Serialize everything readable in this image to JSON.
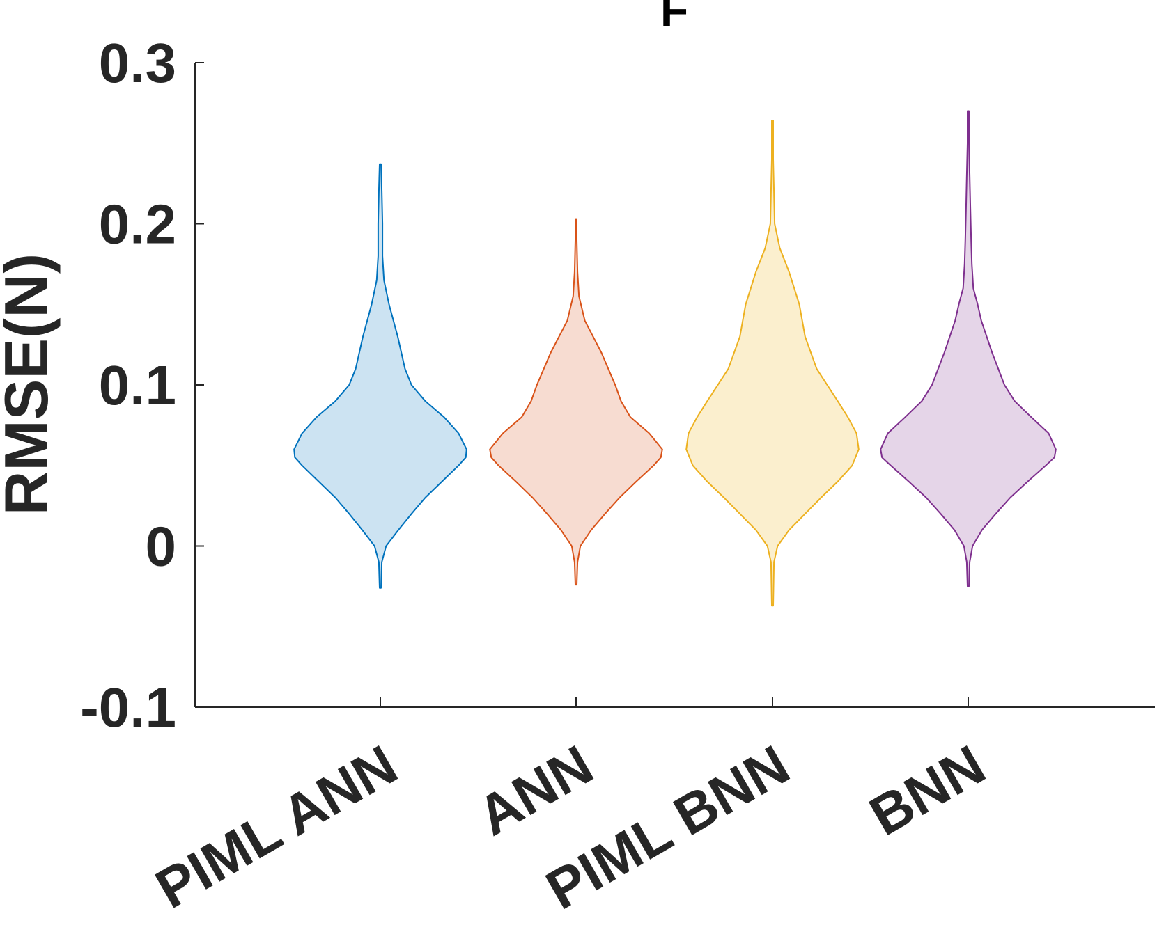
{
  "chart_data": {
    "type": "violin",
    "title": "F",
    "xlabel": "",
    "ylabel": "RMSE(N)",
    "ylim": [
      -0.1,
      0.3
    ],
    "yticks": [
      -0.1,
      0,
      0.1,
      0.2,
      0.3
    ],
    "ytick_labels": [
      "-0.1",
      "0",
      "0.1",
      "0.2",
      "0.3"
    ],
    "categories": [
      "PIML ANN",
      "ANN",
      "PIML BNN",
      "BNN"
    ],
    "series": [
      {
        "name": "PIML ANN",
        "color": "#0072BD",
        "fill": "#CCE3F2",
        "profile": [
          [
            0.237,
            0.001
          ],
          [
            0.22,
            0.002
          ],
          [
            0.2,
            0.003
          ],
          [
            0.18,
            0.003
          ],
          [
            0.165,
            0.005
          ],
          [
            0.15,
            0.012
          ],
          [
            0.13,
            0.024
          ],
          [
            0.11,
            0.034
          ],
          [
            0.1,
            0.043
          ],
          [
            0.09,
            0.062
          ],
          [
            0.08,
            0.088
          ],
          [
            0.07,
            0.108
          ],
          [
            0.06,
            0.119
          ],
          [
            0.055,
            0.118
          ],
          [
            0.05,
            0.108
          ],
          [
            0.04,
            0.085
          ],
          [
            0.03,
            0.062
          ],
          [
            0.02,
            0.043
          ],
          [
            0.01,
            0.025
          ],
          [
            0.0,
            0.008
          ],
          [
            -0.01,
            0.002
          ],
          [
            -0.026,
            0.001
          ]
        ]
      },
      {
        "name": "ANN",
        "color": "#D95319",
        "fill": "#F7DCD1",
        "profile": [
          [
            0.203,
            0.001
          ],
          [
            0.19,
            0.001
          ],
          [
            0.17,
            0.002
          ],
          [
            0.155,
            0.004
          ],
          [
            0.14,
            0.012
          ],
          [
            0.12,
            0.035
          ],
          [
            0.1,
            0.054
          ],
          [
            0.09,
            0.062
          ],
          [
            0.08,
            0.075
          ],
          [
            0.07,
            0.101
          ],
          [
            0.06,
            0.119
          ],
          [
            0.055,
            0.117
          ],
          [
            0.05,
            0.107
          ],
          [
            0.04,
            0.083
          ],
          [
            0.03,
            0.06
          ],
          [
            0.02,
            0.04
          ],
          [
            0.01,
            0.021
          ],
          [
            0.0,
            0.006
          ],
          [
            -0.01,
            0.002
          ],
          [
            -0.024,
            0.001
          ]
        ]
      },
      {
        "name": "PIML BNN",
        "color": "#EDB120",
        "fill": "#FBEFCE",
        "profile": [
          [
            0.264,
            0.001
          ],
          [
            0.24,
            0.001
          ],
          [
            0.22,
            0.002
          ],
          [
            0.2,
            0.003
          ],
          [
            0.185,
            0.01
          ],
          [
            0.17,
            0.023
          ],
          [
            0.15,
            0.037
          ],
          [
            0.13,
            0.045
          ],
          [
            0.11,
            0.061
          ],
          [
            0.09,
            0.09
          ],
          [
            0.08,
            0.104
          ],
          [
            0.07,
            0.116
          ],
          [
            0.06,
            0.119
          ],
          [
            0.05,
            0.11
          ],
          [
            0.04,
            0.09
          ],
          [
            0.03,
            0.067
          ],
          [
            0.02,
            0.045
          ],
          [
            0.01,
            0.023
          ],
          [
            0.0,
            0.007
          ],
          [
            -0.01,
            0.002
          ],
          [
            -0.037,
            0.001
          ]
        ]
      },
      {
        "name": "BNN",
        "color": "#7E2F8E",
        "fill": "#E5D5E8",
        "profile": [
          [
            0.27,
            0.001
          ],
          [
            0.25,
            0.001
          ],
          [
            0.23,
            0.002
          ],
          [
            0.21,
            0.003
          ],
          [
            0.19,
            0.004
          ],
          [
            0.175,
            0.005
          ],
          [
            0.16,
            0.007
          ],
          [
            0.15,
            0.013
          ],
          [
            0.14,
            0.018
          ],
          [
            0.12,
            0.033
          ],
          [
            0.1,
            0.05
          ],
          [
            0.09,
            0.064
          ],
          [
            0.08,
            0.087
          ],
          [
            0.07,
            0.111
          ],
          [
            0.06,
            0.121
          ],
          [
            0.055,
            0.119
          ],
          [
            0.05,
            0.107
          ],
          [
            0.04,
            0.082
          ],
          [
            0.03,
            0.058
          ],
          [
            0.02,
            0.038
          ],
          [
            0.01,
            0.019
          ],
          [
            0.0,
            0.006
          ],
          [
            -0.01,
            0.002
          ],
          [
            -0.025,
            0.001
          ]
        ]
      }
    ]
  }
}
